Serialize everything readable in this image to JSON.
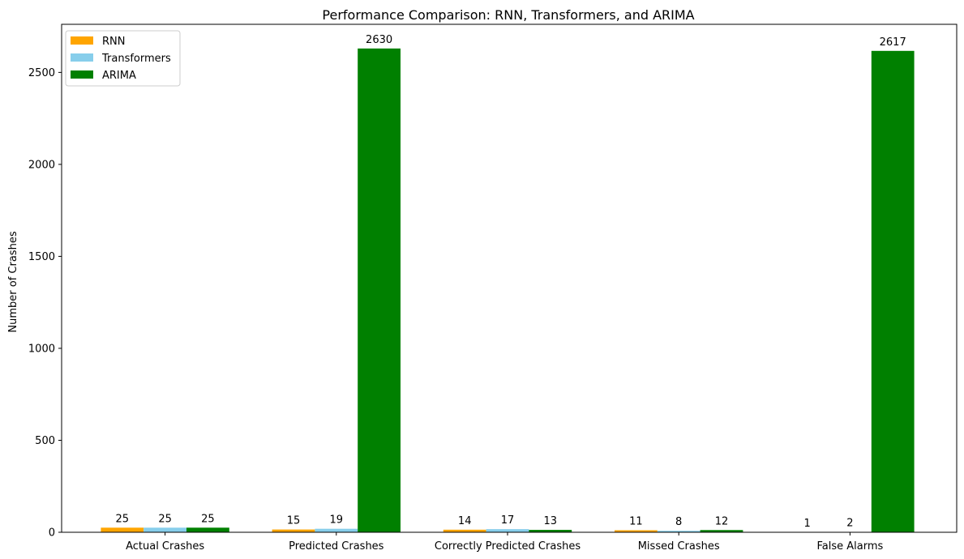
{
  "chart_data": {
    "type": "bar",
    "title": "Performance Comparison: RNN, Transformers, and ARIMA",
    "xlabel": "",
    "ylabel": "Number of Crashes",
    "categories": [
      "Actual Crashes",
      "Predicted Crashes",
      "Correctly Predicted Crashes",
      "Missed Crashes",
      "False Alarms"
    ],
    "series": [
      {
        "name": "RNN",
        "color": "#ffa500",
        "values": [
          25,
          15,
          14,
          11,
          1
        ],
        "labels": [
          "25",
          "15",
          "14",
          "11",
          "1"
        ]
      },
      {
        "name": "Transformers",
        "color": "#87ceeb",
        "values": [
          25,
          19,
          17,
          8,
          2
        ],
        "labels": [
          "25",
          "19",
          "17",
          "8",
          "2"
        ]
      },
      {
        "name": "ARIMA",
        "color": "#008000",
        "values": [
          25,
          2630,
          13,
          12,
          2617
        ],
        "labels": [
          "25",
          "2630",
          "13",
          "12",
          "2617"
        ]
      }
    ],
    "yticks": [
      0,
      500,
      1000,
      1500,
      2000,
      2500
    ],
    "ylim": [
      0,
      2761.5
    ],
    "legend_position": "top-left",
    "grid": false
  }
}
